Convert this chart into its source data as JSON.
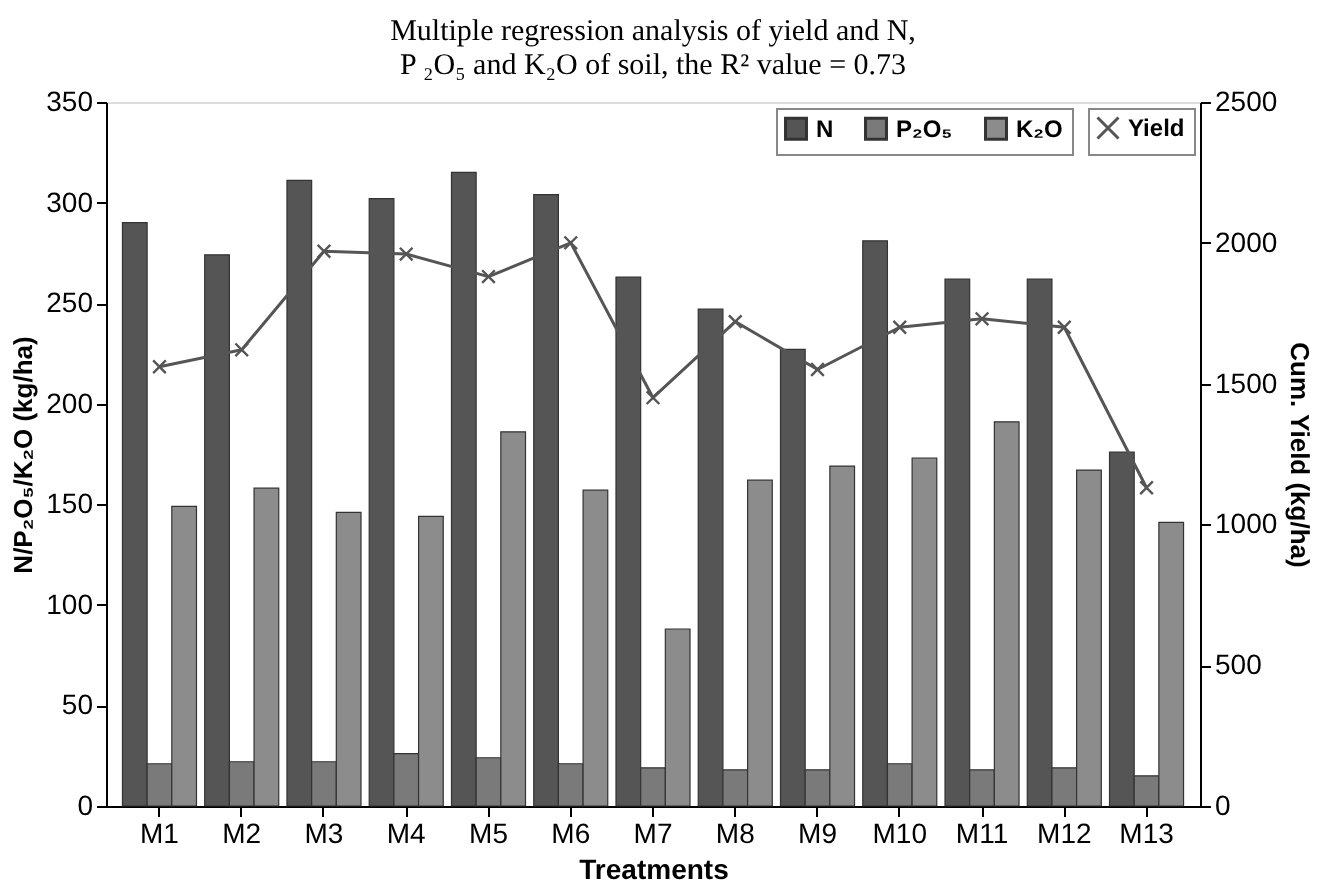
{
  "chart_data": {
    "type": "bar",
    "title": "Multiple regression analysis of yield and N, P ₂O₅ and K₂O of soil, the R² value = 0.73",
    "xlabel": "Treatments",
    "ylabel": "N/P₂O₅/K₂O (kg/ha)",
    "y2label": "Cum. Yield (kg/ha)",
    "categories": [
      "M1",
      "M2",
      "M3",
      "M4",
      "M5",
      "M6",
      "M7",
      "M8",
      "M9",
      "M10",
      "M11",
      "M12",
      "M13"
    ],
    "series": [
      {
        "name": "N",
        "color": "#555555",
        "values": [
          290,
          274,
          311,
          302,
          315,
          304,
          263,
          247,
          227,
          281,
          262,
          262,
          176
        ]
      },
      {
        "name": "P₂O₅",
        "color": "#7a7a7a",
        "values": [
          21,
          22,
          22,
          26,
          24,
          21,
          19,
          18,
          18,
          21,
          18,
          19,
          15
        ]
      },
      {
        "name": "K₂O",
        "color": "#8c8c8c",
        "values": [
          149,
          158,
          146,
          144,
          186,
          157,
          88,
          162,
          169,
          173,
          191,
          167,
          141
        ]
      },
      {
        "name": "Yield",
        "type": "line",
        "axis": "y2",
        "marker": "cross",
        "color": "#555555",
        "values": [
          1560,
          1620,
          1970,
          1960,
          1880,
          2000,
          1450,
          1720,
          1550,
          1700,
          1730,
          1700,
          1130
        ]
      }
    ],
    "ylim": [
      0,
      350
    ],
    "yticks": [
      0,
      50,
      100,
      150,
      200,
      250,
      300,
      350
    ],
    "y2lim": [
      0,
      2500
    ],
    "y2ticks": [
      0,
      500,
      1000,
      1500,
      2000,
      2500
    ],
    "legend": "top right",
    "grid": false
  }
}
